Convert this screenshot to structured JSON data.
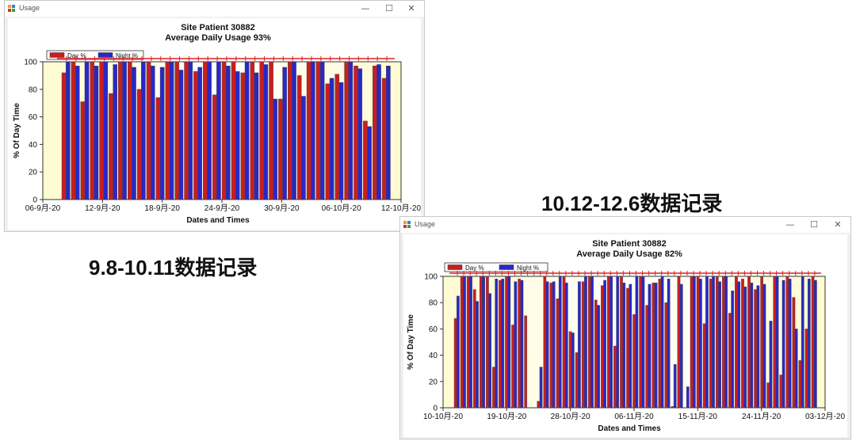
{
  "window_1": {
    "title": "Usage",
    "chart_data": {
      "type": "bar",
      "title": "Site Patient 30882",
      "subtitle": "Average Daily Usage 93%",
      "xlabel": "Dates and Times",
      "ylabel": "% Of Day Time",
      "ylim": [
        0,
        100
      ],
      "yticks": [
        "0",
        "20",
        "40",
        "60",
        "80",
        "100"
      ],
      "xticks": [
        "06-9月-20",
        "12-9月-20",
        "18-9月-20",
        "24-9月-20",
        "30-9月-20",
        "06-10月-20",
        "12-10月-20"
      ],
      "legend_position": "top-left",
      "series": [
        {
          "name": "Day %",
          "color": "#c81e1e",
          "values": [
            92,
            100,
            71,
            100,
            100,
            77,
            100,
            100,
            80,
            100,
            74,
            100,
            100,
            100,
            93,
            100,
            76,
            100,
            100,
            92,
            100,
            100,
            100,
            73,
            100,
            90,
            100,
            100,
            84,
            91,
            100,
            97,
            57,
            97,
            88
          ]
        },
        {
          "name": "Night %",
          "color": "#2828c8",
          "values": [
            100,
            97,
            100,
            97,
            100,
            98,
            100,
            96,
            100,
            97,
            96,
            100,
            94,
            100,
            96,
            100,
            100,
            97,
            93,
            100,
            92,
            98,
            73,
            96,
            100,
            75,
            100,
            100,
            88,
            85,
            100,
            95,
            53,
            98,
            97
          ]
        }
      ]
    }
  },
  "window_2": {
    "title": "Usage",
    "chart_data": {
      "type": "bar",
      "title": "Site Patient 30882",
      "subtitle": "Average Daily Usage 82%",
      "xlabel": "Dates and Times",
      "ylabel": "% Of Day Time",
      "ylim": [
        0,
        100
      ],
      "yticks": [
        "0",
        "20",
        "40",
        "60",
        "80",
        "100"
      ],
      "xticks": [
        "10-10月-20",
        "19-10月-20",
        "28-10月-20",
        "06-11月-20",
        "15-11月-20",
        "24-11月-20",
        "03-12月-20"
      ],
      "legend_position": "top-left",
      "series": [
        {
          "name": "Day %",
          "color": "#c81e1e",
          "values": [
            68,
            100,
            100,
            90,
            100,
            100,
            31,
            97,
            100,
            63,
            98,
            70,
            0,
            5,
            100,
            95,
            83,
            100,
            58,
            42,
            96,
            100,
            82,
            93,
            100,
            47,
            100,
            91,
            71,
            100,
            78,
            95,
            98,
            80,
            1,
            100,
            0,
            100,
            100,
            64,
            98,
            100,
            100,
            72,
            100,
            98,
            100,
            90,
            100,
            19,
            100,
            25,
            100,
            84,
            36,
            60,
            100
          ]
        },
        {
          "name": "Night %",
          "color": "#2828c8",
          "values": [
            85,
            100,
            100,
            81,
            100,
            87,
            98,
            98,
            100,
            96,
            97,
            0,
            0,
            31,
            96,
            96,
            100,
            95,
            57,
            96,
            100,
            100,
            78,
            97,
            100,
            100,
            95,
            94,
            100,
            100,
            94,
            95,
            100,
            98,
            33,
            94,
            16,
            100,
            98,
            100,
            100,
            96,
            100,
            89,
            96,
            92,
            95,
            93,
            94,
            66,
            100,
            97,
            98,
            60,
            100,
            98,
            97
          ]
        }
      ]
    }
  },
  "captions": {
    "first": "9.8-10.11数据记录",
    "second": "10.12-12.6数据记录"
  }
}
